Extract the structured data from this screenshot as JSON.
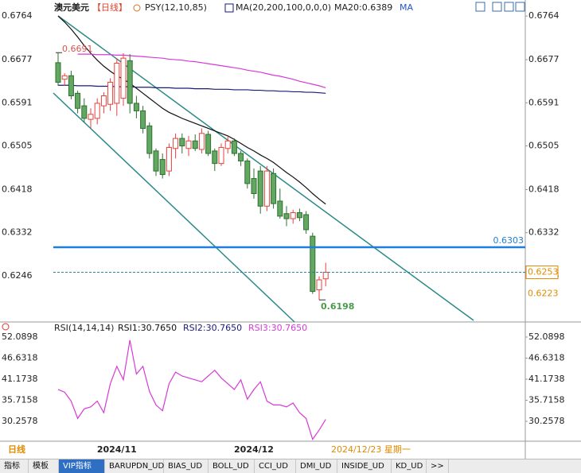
{
  "header": {
    "symbol": "澳元美元",
    "period": "【日线】",
    "indicator": "PSY(12,10,85)",
    "ma_params": "MA(20,200,100,0,0,0)",
    "ma_value": "MA20:0.6389",
    "ma_tag": "MA"
  },
  "chart_data": [
    {
      "type": "candlestick",
      "categories": [
        null,
        null,
        null,
        null,
        null,
        null,
        null,
        null,
        null,
        "2024/11",
        null,
        null,
        null,
        null,
        null,
        null,
        null,
        null,
        null,
        null,
        null,
        null,
        null,
        null,
        null,
        null,
        null,
        null,
        null,
        null,
        "2024/12",
        null,
        null,
        null,
        null,
        null,
        null,
        null,
        null,
        null,
        null,
        null
      ],
      "open": [
        0.6671,
        0.6638,
        0.6645,
        0.661,
        0.6585,
        0.6558,
        0.656,
        0.6585,
        0.6588,
        0.659,
        0.66,
        0.6675,
        0.659,
        0.6575,
        0.6545,
        0.6495,
        0.6478,
        0.6455,
        0.65,
        0.652,
        0.65,
        0.6515,
        0.6498,
        0.6528,
        0.6495,
        0.647,
        0.65,
        0.6515,
        0.649,
        0.6475,
        0.644,
        0.6455,
        0.6385,
        0.645,
        0.6395,
        0.637,
        0.636,
        0.6372,
        0.6368,
        0.6325,
        0.6218,
        0.624
      ],
      "high": [
        0.6691,
        0.665,
        0.6655,
        0.6615,
        0.66,
        0.658,
        0.66,
        0.6612,
        0.664,
        0.668,
        0.669,
        0.6688,
        0.6605,
        0.6585,
        0.6552,
        0.65,
        0.649,
        0.651,
        0.653,
        0.653,
        0.6525,
        0.6528,
        0.654,
        0.6535,
        0.65,
        0.651,
        0.6525,
        0.652,
        0.6495,
        0.648,
        0.646,
        0.6465,
        0.6465,
        0.646,
        0.642,
        0.6385,
        0.6378,
        0.638,
        0.6375,
        0.6332,
        0.6245,
        0.6272
      ],
      "low": [
        0.6625,
        0.6625,
        0.6598,
        0.657,
        0.6552,
        0.654,
        0.6548,
        0.657,
        0.6575,
        0.6565,
        0.6585,
        0.657,
        0.656,
        0.653,
        0.648,
        0.6445,
        0.644,
        0.6445,
        0.648,
        0.649,
        0.6485,
        0.6495,
        0.649,
        0.6485,
        0.6455,
        0.6465,
        0.649,
        0.6485,
        0.6465,
        0.642,
        0.64,
        0.637,
        0.6375,
        0.638,
        0.636,
        0.6345,
        0.635,
        0.6355,
        0.633,
        0.621,
        0.6198,
        0.6225
      ],
      "close": [
        0.6632,
        0.6645,
        0.6605,
        0.658,
        0.656,
        0.6568,
        0.659,
        0.6605,
        0.6632,
        0.667,
        0.668,
        0.659,
        0.6575,
        0.654,
        0.649,
        0.6455,
        0.6448,
        0.6502,
        0.652,
        0.6505,
        0.6515,
        0.65,
        0.653,
        0.649,
        0.647,
        0.6502,
        0.6515,
        0.649,
        0.6475,
        0.643,
        0.641,
        0.6385,
        0.6455,
        0.639,
        0.6365,
        0.636,
        0.6372,
        0.6362,
        0.6338,
        0.6215,
        0.6238,
        0.6253
      ],
      "up_color": "#e8413c",
      "down_color": "#62a862",
      "series": [
        {
          "color": "#111111",
          "values": [
            0.6764,
            0.6752,
            0.6738,
            0.6722,
            0.6705,
            0.669,
            0.6676,
            0.6664,
            0.6654,
            0.6645,
            0.6638,
            0.663,
            0.662,
            0.661,
            0.66,
            0.659,
            0.658,
            0.6572,
            0.6566,
            0.656,
            0.6555,
            0.655,
            0.6545,
            0.654,
            0.6535,
            0.653,
            0.6525,
            0.6518,
            0.651,
            0.6502,
            0.6495,
            0.6487,
            0.648,
            0.6472,
            0.6462,
            0.6452,
            0.6443,
            0.6433,
            0.6422,
            0.641,
            0.6399,
            0.6389
          ]
        },
        {
          "color": "#1a1a7a",
          "values": [
            0.6626,
            0.6626,
            0.6626,
            0.6625,
            0.6625,
            0.6625,
            0.6624,
            0.6624,
            0.6624,
            0.6623,
            0.6623,
            0.6623,
            0.6622,
            0.6622,
            0.6622,
            0.6621,
            0.6621,
            0.6621,
            0.662,
            0.662,
            0.662,
            0.6619,
            0.6619,
            0.6619,
            0.6618,
            0.6618,
            0.6618,
            0.6617,
            0.6617,
            0.6617,
            0.6616,
            0.6616,
            0.6615,
            0.6615,
            0.6614,
            0.6614,
            0.6613,
            0.6613,
            0.6612,
            0.6612,
            0.6611,
            0.661
          ]
        },
        {
          "color": "#d63ad6",
          "values": [
            null,
            null,
            null,
            0.6688,
            0.6688,
            0.6688,
            0.6687,
            0.6687,
            0.6687,
            0.6686,
            0.6686,
            0.6685,
            0.6684,
            0.6683,
            0.6682,
            0.6681,
            0.668,
            0.6678,
            0.6677,
            0.6676,
            0.6674,
            0.6673,
            0.6671,
            0.6669,
            0.6667,
            0.6665,
            0.6663,
            0.6661,
            0.6659,
            0.6656,
            0.6654,
            0.6652,
            0.6649,
            0.6646,
            0.6644,
            0.6641,
            0.6638,
            0.6634,
            0.6631,
            0.6628,
            0.6625,
            0.6621
          ]
        }
      ],
      "ylim": [
        0.6154,
        0.6796
      ],
      "yticks": [
        0.6764,
        0.6677,
        0.6591,
        0.6505,
        0.6418,
        0.6332,
        0.6246
      ],
      "hline": {
        "value": 0.6303,
        "color": "#1e7fd8"
      },
      "last_price": 0.6253,
      "ask_price": 0.6223,
      "max_price": 0.6691,
      "min_price": 0.6198
    },
    {
      "type": "line",
      "title": "RSI(14,14,14)",
      "legend": [
        {
          "text": "RSI1:30.7650",
          "color": "#111111"
        },
        {
          "text": "RSI2:30.7650",
          "color": "#1a1a7a"
        },
        {
          "text": "RSI3:30.7650",
          "color": "#d63ad6"
        }
      ],
      "series": [
        {
          "color": "#d63ad6",
          "values": [
            38.5,
            37.8,
            35.5,
            31,
            33.5,
            34,
            35.5,
            32.5,
            40,
            44.5,
            41,
            51.3,
            42.5,
            44.5,
            38,
            34.5,
            33,
            40,
            43,
            42,
            41.5,
            41,
            40.5,
            42,
            43.5,
            41.5,
            40,
            38.5,
            41,
            36,
            38.5,
            40.5,
            35.5,
            34.5,
            34.5,
            34,
            35,
            32.5,
            31,
            25.6,
            28,
            30.765
          ]
        }
      ],
      "ylim": [
        25.11,
        54.97
      ],
      "yticks": [
        52.0898,
        46.6318,
        41.1738,
        35.7158,
        30.2578
      ]
    }
  ],
  "date_axis": {
    "period": "日线",
    "cursor_date": "2024/12/23 星期一"
  },
  "tabs": [
    "指标",
    "模板",
    "VIP指标",
    "BARUPDN_UD",
    "BIAS_UD",
    "BOLL_UD",
    "CCI_UD",
    "DMI_UD",
    "INSIDE_UD",
    "KD_UD",
    ">>"
  ]
}
